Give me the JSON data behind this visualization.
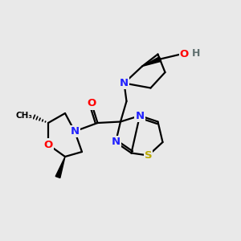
{
  "background_color": "#e9e9e9",
  "atom_colors": {
    "N": "#2020FF",
    "O": "#FF0000",
    "S": "#BBAA00",
    "C": "#000000",
    "H": "#607070"
  },
  "bond_lw": 1.6,
  "fig_size": [
    3.0,
    3.0
  ],
  "dpi": 100
}
